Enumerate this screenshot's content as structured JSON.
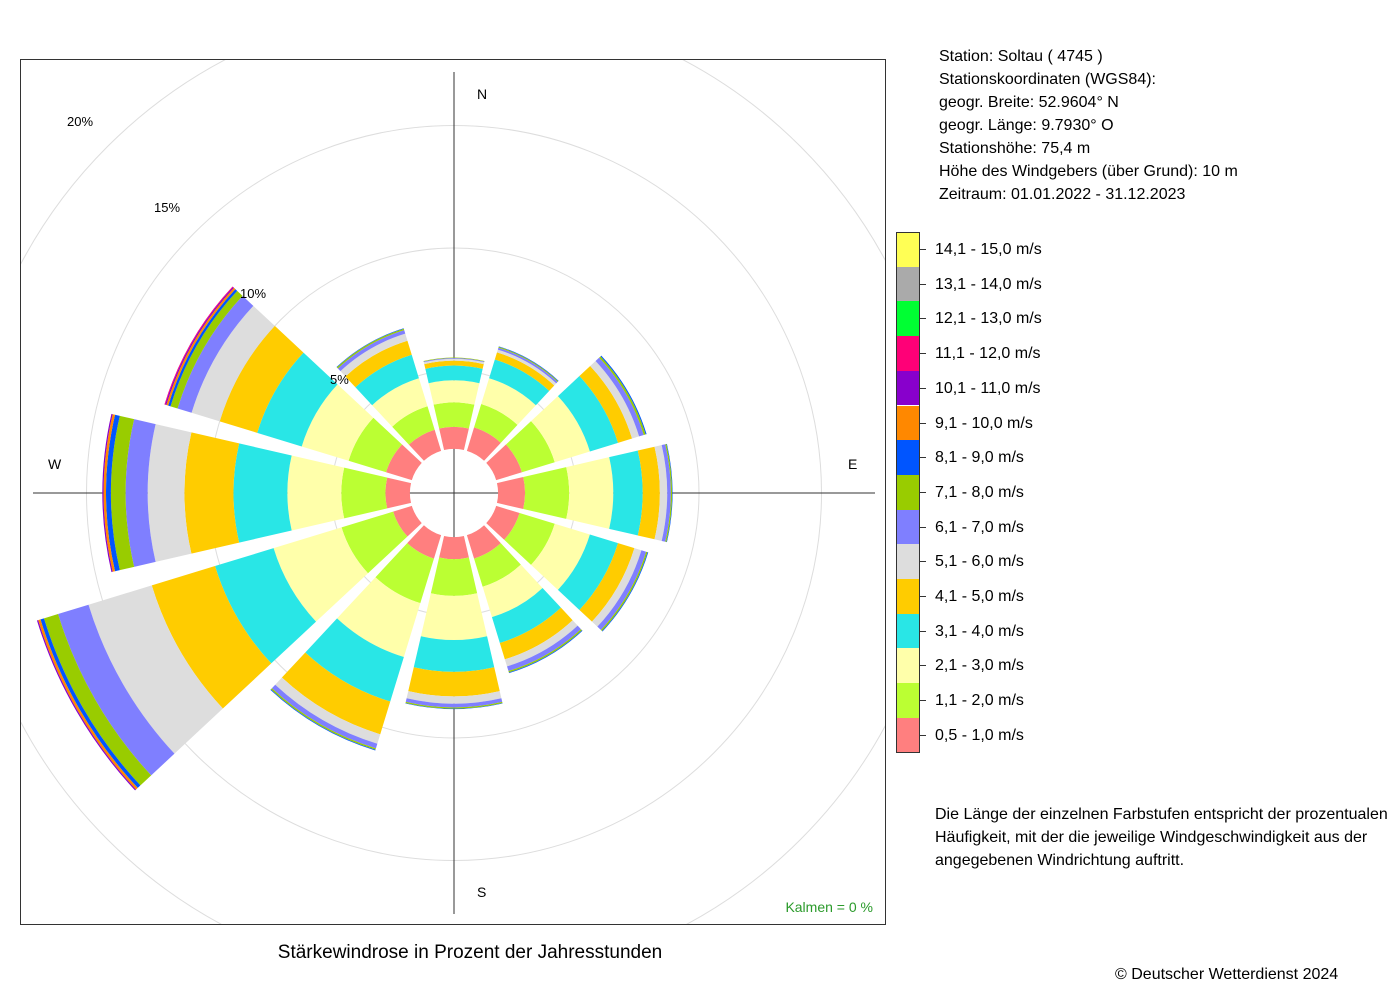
{
  "chart_title": "Stärkewindrose in Prozent der Jahresstunden",
  "station_info": [
    "Station:  Soltau  ( 4745 )",
    "Stationskoordinaten (WGS84):",
    "geogr. Breite: 52.9604° N",
    "geogr. Länge:   9.7930° O",
    "Stationshöhe: 75,4 m",
    "Höhe des Windgebers (über Grund): 10 m",
    "Zeitraum: 01.01.2022 - 31.12.2023"
  ],
  "compass": {
    "n": "N",
    "e": "E",
    "s": "S",
    "w": "W"
  },
  "calm": "Kalmen  =  0 %",
  "note": "Die Länge der einzelnen Farbstufen entspricht der prozentualen Häufigkeit, mit der die jeweilige Windgeschwindigkeit aus der angegebenen Windrichtung auftritt.",
  "copyright": "© Deutscher Wetterdienst  2024",
  "chart_data": {
    "type": "wind-rose",
    "title": "Stärkewindrose in Prozent der Jahresstunden",
    "calm_percent": 0,
    "ring_values": [
      5,
      10,
      15,
      20
    ],
    "ring_labels": [
      "5%",
      "10%",
      "15%",
      "20%"
    ],
    "ring_label_angle_deg": 330,
    "inner_hole_percent": 1.8,
    "directions_deg": [
      0,
      30,
      60,
      90,
      120,
      150,
      180,
      210,
      240,
      270,
      300,
      330
    ],
    "sector_halfwidth_deg": 13,
    "speed_classes": [
      {
        "label": "0,5 - 1,0 m/s",
        "color": "#ff7f7f"
      },
      {
        "label": "1,1 - 2,0 m/s",
        "color": "#bbff33"
      },
      {
        "label": "2,1 - 3,0 m/s",
        "color": "#ffffaa"
      },
      {
        "label": "3,1 - 4,0 m/s",
        "color": "#29e6e6"
      },
      {
        "label": "4,1 - 5,0 m/s",
        "color": "#ffcc00"
      },
      {
        "label": "5,1 - 6,0 m/s",
        "color": "#dddddd"
      },
      {
        "label": "6,1 - 7,0 m/s",
        "color": "#7f7fff"
      },
      {
        "label": "7,1 - 8,0 m/s",
        "color": "#99cc00"
      },
      {
        "label": "8,1 - 9,0 m/s",
        "color": "#0055ff"
      },
      {
        "label": "9,1 - 10,0 m/s",
        "color": "#ff8800"
      },
      {
        "label": "10,1 - 11,0 m/s",
        "color": "#8800cc"
      },
      {
        "label": "11,1 - 12,0 m/s",
        "color": "#ff0077"
      },
      {
        "label": "12,1 - 13,0 m/s",
        "color": "#00ff33"
      },
      {
        "label": "13,1 - 14,0 m/s",
        "color": "#aaaaaa"
      },
      {
        "label": "14,1 - 15,0 m/s",
        "color": "#ffff55"
      }
    ],
    "series": [
      {
        "direction": "N",
        "deg": 0,
        "values": [
          0.9,
          1.0,
          0.9,
          0.6,
          0.2,
          0.08,
          0.03,
          0.02,
          0,
          0,
          0,
          0,
          0,
          0,
          0
        ]
      },
      {
        "direction": "NNE",
        "deg": 30,
        "values": [
          1.0,
          1.0,
          1.1,
          0.8,
          0.3,
          0.12,
          0.08,
          0.04,
          0.02,
          0,
          0,
          0,
          0,
          0,
          0
        ]
      },
      {
        "direction": "ENE",
        "deg": 60,
        "values": [
          1.1,
          1.4,
          1.5,
          1.2,
          0.6,
          0.3,
          0.2,
          0.08,
          0.04,
          0,
          0,
          0,
          0,
          0,
          0
        ]
      },
      {
        "direction": "E",
        "deg": 90,
        "values": [
          1.1,
          1.8,
          1.8,
          1.2,
          0.7,
          0.3,
          0.15,
          0.05,
          0.02,
          0,
          0,
          0,
          0,
          0,
          0
        ]
      },
      {
        "direction": "ESE",
        "deg": 120,
        "values": [
          1.0,
          1.5,
          1.5,
          1.2,
          0.7,
          0.3,
          0.2,
          0.06,
          0.03,
          0,
          0,
          0,
          0,
          0,
          0
        ]
      },
      {
        "direction": "SSE",
        "deg": 150,
        "values": [
          1.0,
          1.2,
          1.3,
          1.1,
          0.7,
          0.3,
          0.2,
          0.06,
          0.03,
          0,
          0,
          0,
          0,
          0,
          0
        ]
      },
      {
        "direction": "S",
        "deg": 180,
        "values": [
          0.9,
          1.5,
          1.8,
          1.3,
          1.0,
          0.3,
          0.15,
          0.05,
          0.02,
          0,
          0,
          0,
          0,
          0,
          0
        ]
      },
      {
        "direction": "SSW",
        "deg": 210,
        "values": [
          1.0,
          1.9,
          2.3,
          1.9,
          1.4,
          0.4,
          0.2,
          0.06,
          0.03,
          0,
          0,
          0,
          0,
          0,
          0
        ]
      },
      {
        "direction": "WSW",
        "deg": 240,
        "values": [
          0.8,
          2.2,
          2.9,
          2.5,
          2.7,
          2.7,
          1.3,
          0.6,
          0.15,
          0.1,
          0.05,
          0,
          0,
          0,
          0
        ]
      },
      {
        "direction": "W",
        "deg": 270,
        "values": [
          1.0,
          1.8,
          2.2,
          2.2,
          2.0,
          1.5,
          0.9,
          0.6,
          0.2,
          0.1,
          0.05,
          0,
          0,
          0,
          0
        ]
      },
      {
        "direction": "WNW",
        "deg": 300,
        "values": [
          1.1,
          1.6,
          2.0,
          1.9,
          1.6,
          1.2,
          0.6,
          0.3,
          0.1,
          0.08,
          0.05,
          0.03,
          0,
          0,
          0
        ]
      },
      {
        "direction": "NNW",
        "deg": 330,
        "values": [
          0.9,
          1.0,
          1.2,
          1.0,
          0.6,
          0.3,
          0.15,
          0.06,
          0.02,
          0,
          0,
          0,
          0,
          0,
          0
        ]
      }
    ]
  }
}
